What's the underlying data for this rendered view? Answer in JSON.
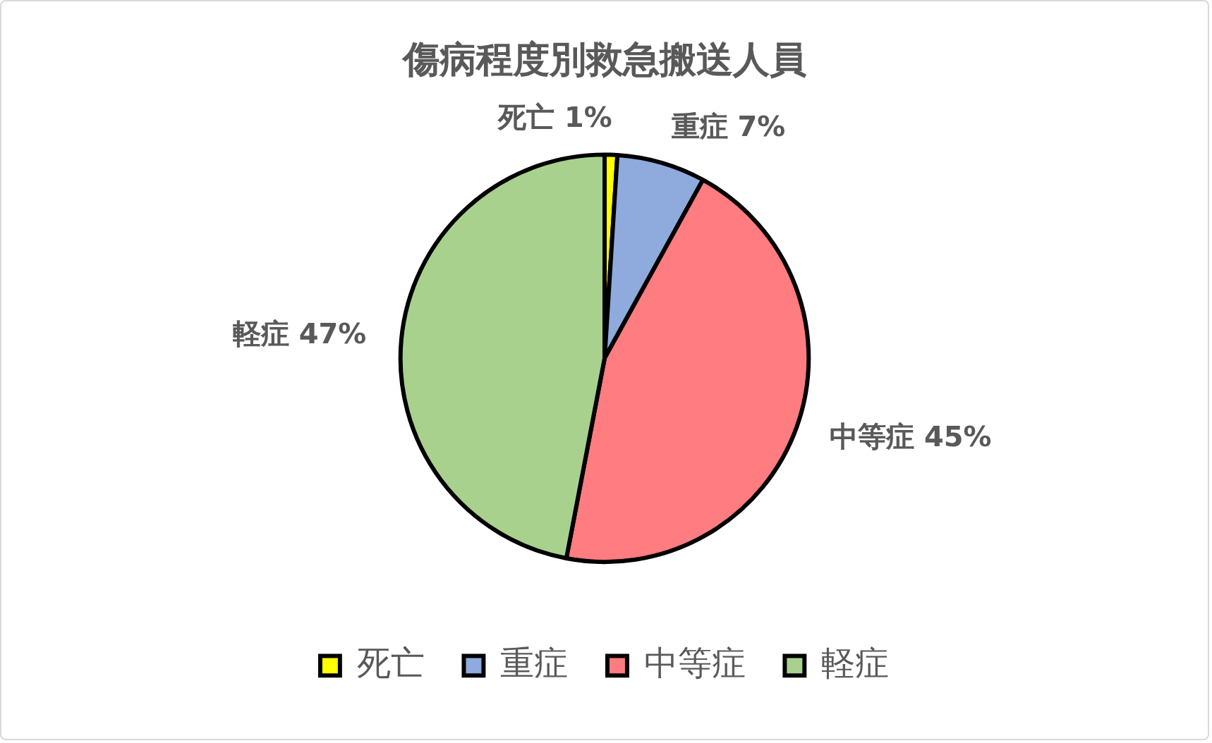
{
  "chart_data": {
    "type": "pie",
    "title": "傷病程度別救急搬送人員",
    "categories": [
      "死亡",
      "重症",
      "中等症",
      "軽症"
    ],
    "values": [
      1,
      7,
      45,
      47
    ],
    "colors": [
      "#ffff00",
      "#8faadc",
      "#ff7c80",
      "#a9d18e"
    ],
    "value_labels": [
      "死亡 1%",
      "重症 7%",
      "中等症 45%",
      "軽症 47%"
    ],
    "legend": "bottom"
  }
}
